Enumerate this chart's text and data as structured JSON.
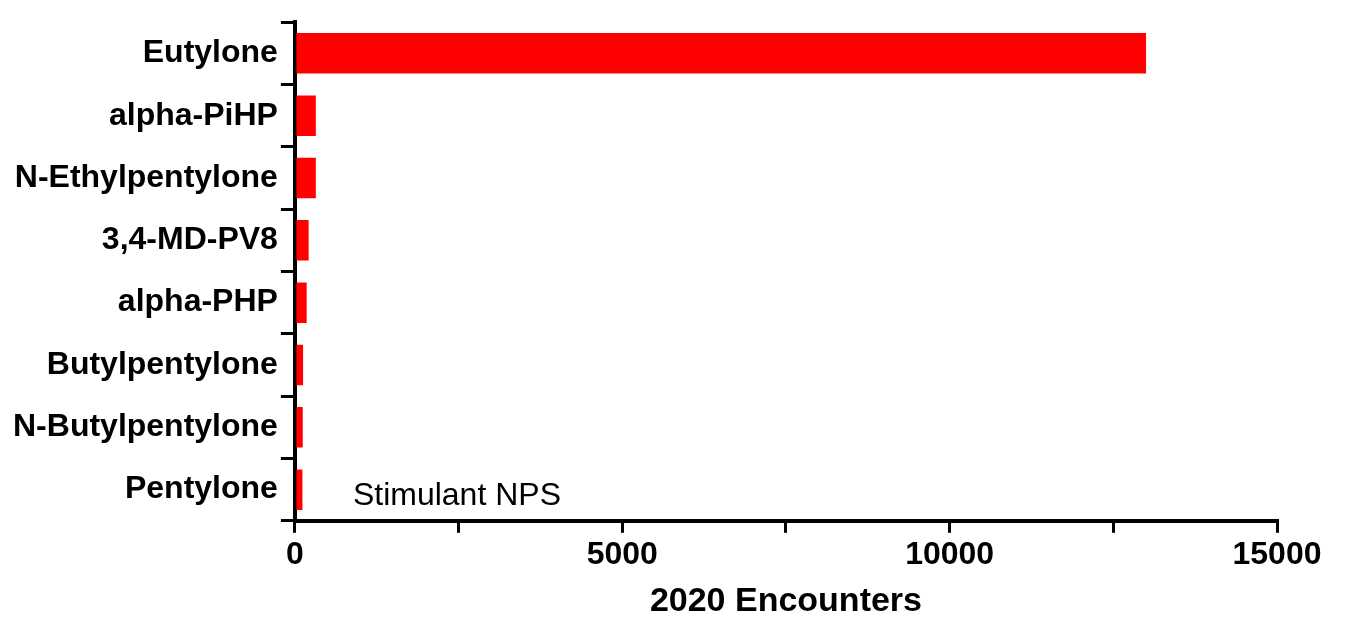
{
  "chart_data": {
    "type": "bar",
    "orientation": "horizontal",
    "categories": [
      "Eutylone",
      "alpha-PiHP",
      "N-Ethylpentylone",
      "3,4-MD-PV8",
      "alpha-PHP",
      "Butylpentylone",
      "N-Butylpentylone",
      "Pentylone"
    ],
    "values": [
      13000,
      320,
      320,
      210,
      180,
      125,
      120,
      115
    ],
    "color": "#ff0000",
    "xlim": [
      0,
      15000
    ],
    "xticks": [
      0,
      {
        "value": 2500,
        "label": null
      },
      5000,
      {
        "value": 7500,
        "label": null
      },
      10000,
      {
        "value": 12500,
        "label": null
      },
      15000
    ],
    "xlabel": "2020 Encounters",
    "annotations": [
      "Stimulant NPS"
    ],
    "grid": false,
    "legend": false
  }
}
